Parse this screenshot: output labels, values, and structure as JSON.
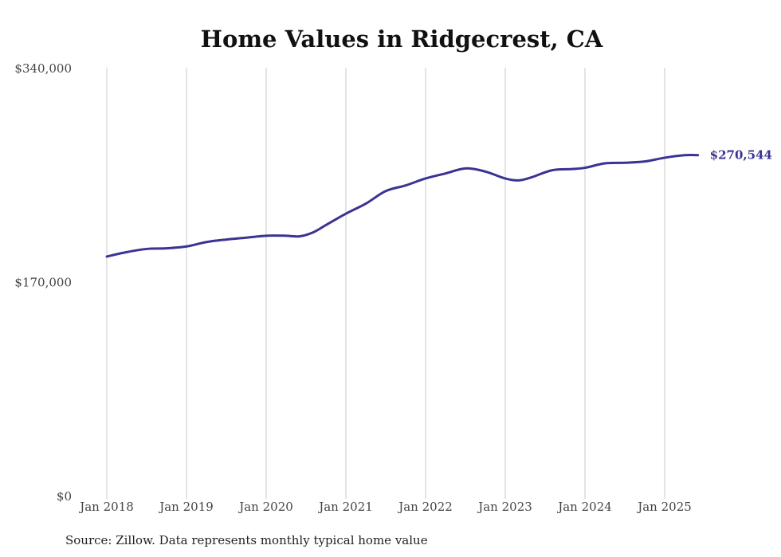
{
  "chart_data": {
    "type": "line",
    "title": "Home Values in Ridgecrest, CA",
    "xlabel": "",
    "ylabel": "",
    "ylim": [
      0,
      340000
    ],
    "y_ticks": [
      {
        "value": 0,
        "label": "$0"
      },
      {
        "value": 170000,
        "label": "$170,000"
      },
      {
        "value": 340000,
        "label": "$340,000"
      }
    ],
    "x_ticks": [
      {
        "value": "2018-01",
        "label": "Jan 2018"
      },
      {
        "value": "2019-01",
        "label": "Jan 2019"
      },
      {
        "value": "2020-01",
        "label": "Jan 2020"
      },
      {
        "value": "2021-01",
        "label": "Jan 2021"
      },
      {
        "value": "2022-01",
        "label": "Jan 2022"
      },
      {
        "value": "2023-01",
        "label": "Jan 2023"
      },
      {
        "value": "2024-01",
        "label": "Jan 2024"
      },
      {
        "value": "2025-01",
        "label": "Jan 2025"
      }
    ],
    "grid": "vertical",
    "series": [
      {
        "color": "#3b3393",
        "end_label": "$270,544",
        "points": [
          {
            "x": "2018-01",
            "y": 190000
          },
          {
            "x": "2018-04",
            "y": 193500
          },
          {
            "x": "2018-07",
            "y": 196000
          },
          {
            "x": "2018-10",
            "y": 196500
          },
          {
            "x": "2019-01",
            "y": 198000
          },
          {
            "x": "2019-04",
            "y": 201500
          },
          {
            "x": "2019-07",
            "y": 203500
          },
          {
            "x": "2019-10",
            "y": 205000
          },
          {
            "x": "2020-01",
            "y": 206500
          },
          {
            "x": "2020-04",
            "y": 206500
          },
          {
            "x": "2020-06",
            "y": 206000
          },
          {
            "x": "2020-08",
            "y": 209000
          },
          {
            "x": "2020-10",
            "y": 215000
          },
          {
            "x": "2021-01",
            "y": 224000
          },
          {
            "x": "2021-04",
            "y": 232000
          },
          {
            "x": "2021-07",
            "y": 242000
          },
          {
            "x": "2021-10",
            "y": 246500
          },
          {
            "x": "2022-01",
            "y": 252000
          },
          {
            "x": "2022-04",
            "y": 256000
          },
          {
            "x": "2022-07",
            "y": 260000
          },
          {
            "x": "2022-10",
            "y": 257500
          },
          {
            "x": "2023-01",
            "y": 252000
          },
          {
            "x": "2023-03",
            "y": 250500
          },
          {
            "x": "2023-05",
            "y": 253000
          },
          {
            "x": "2023-08",
            "y": 258500
          },
          {
            "x": "2023-11",
            "y": 259500
          },
          {
            "x": "2024-01",
            "y": 260500
          },
          {
            "x": "2024-04",
            "y": 264000
          },
          {
            "x": "2024-07",
            "y": 264500
          },
          {
            "x": "2024-10",
            "y": 265500
          },
          {
            "x": "2025-01",
            "y": 268500
          },
          {
            "x": "2025-04",
            "y": 270500
          },
          {
            "x": "2025-06",
            "y": 270544
          }
        ]
      }
    ]
  },
  "source_note": "Source: Zillow. Data represents monthly typical home value"
}
